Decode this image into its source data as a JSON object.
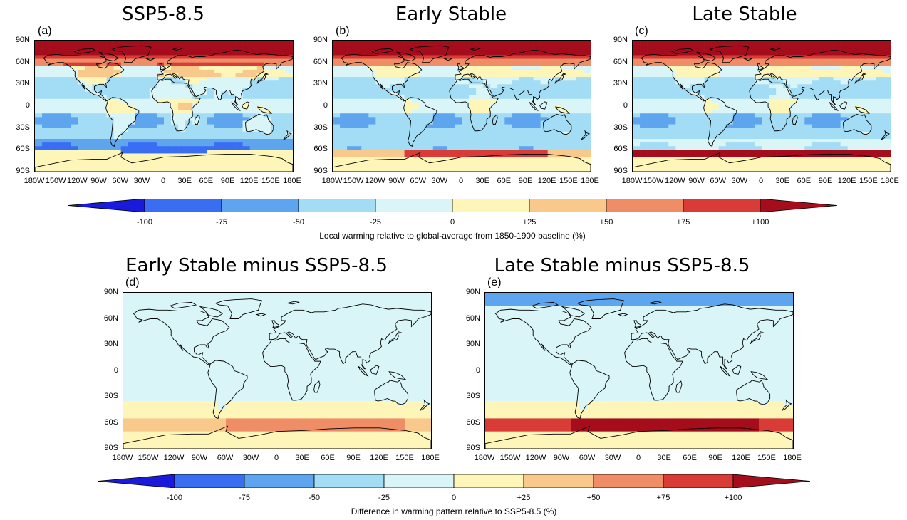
{
  "panels": [
    {
      "title": "SSP5-8.5",
      "label": "(a)",
      "variant": "ssp"
    },
    {
      "title": "Early Stable",
      "label": "(b)",
      "variant": "early"
    },
    {
      "title": "Late Stable",
      "label": "(c)",
      "variant": "late"
    },
    {
      "title": "Early Stable minus SSP5-8.5",
      "label": "(d)",
      "variant": "diff_early"
    },
    {
      "title": "Late Stable minus SSP5-8.5",
      "label": "(e)",
      "variant": "diff_late"
    }
  ],
  "lat_ticks": [
    "90N",
    "60N",
    "30N",
    "0",
    "30S",
    "60S",
    "90S"
  ],
  "lon_ticks_top": [
    "180W",
    "150W",
    "120W",
    "90W",
    "60W",
    "30W",
    "0",
    "30E",
    "60E",
    "90E",
    "120E",
    "150E",
    "180E"
  ],
  "lon_ticks_bottom": [
    "180W",
    "150W",
    "120W",
    "90W",
    "60W",
    "30W",
    "0",
    "30E",
    "60E",
    "90E",
    "120E",
    "150E",
    "180E"
  ],
  "colorbar_top": {
    "labels": [
      "-100",
      "-75",
      "-50",
      "-25",
      "0",
      "+25",
      "+50",
      "+75",
      "+100"
    ],
    "title": "Local warming relative to global-average from 1850-1900 baseline (%)"
  },
  "colorbar_bottom": {
    "labels": [
      "-100",
      "-75",
      "-50",
      "-25",
      "0",
      "+25",
      "+50",
      "+75",
      "+100"
    ],
    "title": "Difference in warming pattern relative to SSP5-8.5 (%)"
  },
  "colors": {
    "lt_m100": "#1a1adb",
    "m100_m75": "#3a6ef2",
    "m75_m50": "#5ea5ef",
    "m50_m25": "#a2dcf5",
    "m25_0": "#d9f5f7",
    "p0_25": "#fdf6b8",
    "p25_50": "#f8c98b",
    "p50_75": "#ef8d66",
    "p75_100": "#d93b36",
    "gt_p100": "#a60d1c",
    "coast": "#000000"
  }
}
